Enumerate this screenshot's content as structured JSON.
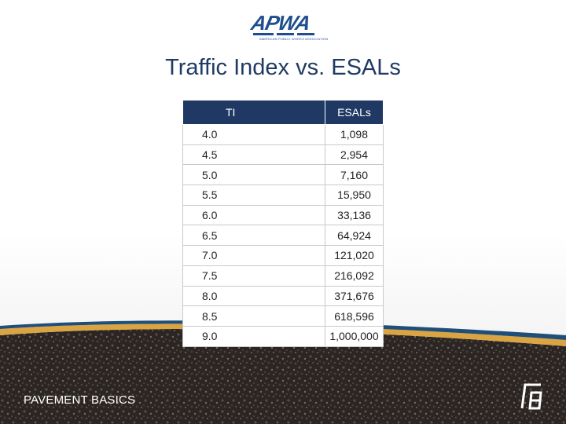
{
  "logo": {
    "name": "APWA",
    "tagline": "AMERICAN PUBLIC WORKS ASSOCIATION"
  },
  "slide": {
    "title": "Traffic Index vs. ESALs",
    "footer": "PAVEMENT BASICS"
  },
  "table": {
    "headers": [
      "TI",
      "ESALs"
    ],
    "rows": [
      [
        "4.0",
        "1,098"
      ],
      [
        "4.5",
        "2,954"
      ],
      [
        "5.0",
        "7,160"
      ],
      [
        "5.5",
        "15,950"
      ],
      [
        "6.0",
        "33,136"
      ],
      [
        "6.5",
        "64,924"
      ],
      [
        "7.0",
        "121,020"
      ],
      [
        "7.5",
        "216,092"
      ],
      [
        "8.0",
        "371,676"
      ],
      [
        "8.5",
        "618,596"
      ],
      [
        "9.0",
        "1,000,000"
      ]
    ]
  },
  "colors": {
    "header": "#1f3864",
    "title": "#1f3b63",
    "stripe_blue": "#1f4e79",
    "stripe_gold": "#d9a441",
    "asphalt": "#2b2624"
  }
}
